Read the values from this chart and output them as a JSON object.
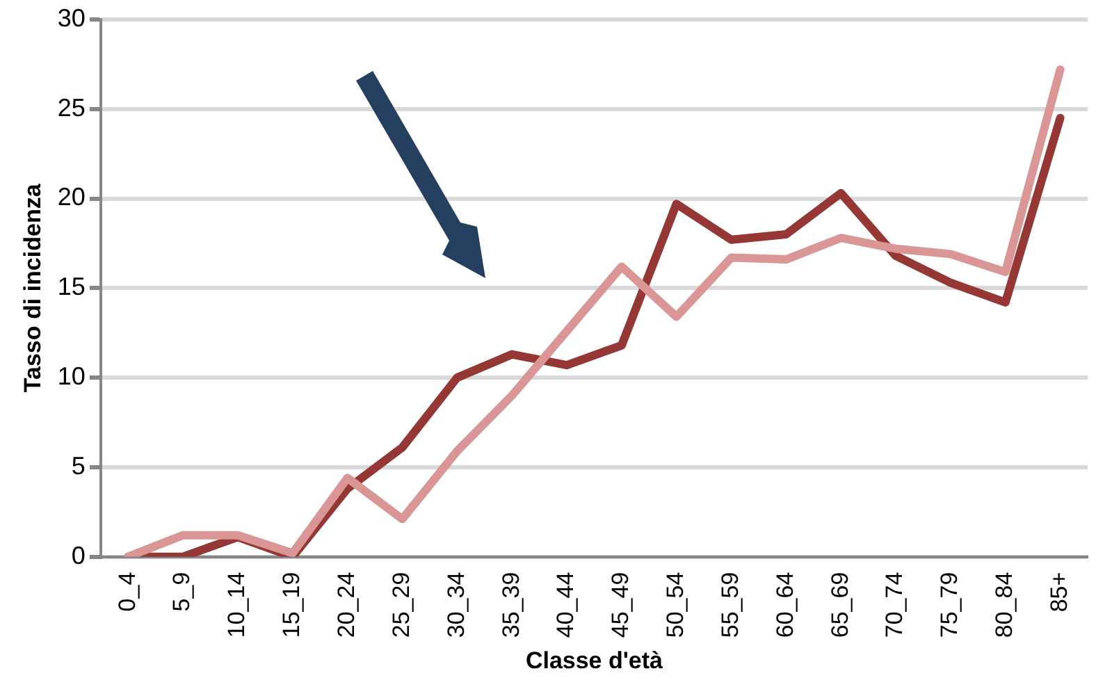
{
  "chart_data": {
    "type": "line",
    "xlabel": "Classe d'età",
    "ylabel": "Tasso di incidenza",
    "categories": [
      "0_4",
      "5_9",
      "10_14",
      "15_19",
      "20_24",
      "25_29",
      "30_34",
      "35_39",
      "40_44",
      "45_49",
      "50_54",
      "55_59",
      "60_64",
      "65_69",
      "70_74",
      "75_79",
      "80_84",
      "85+"
    ],
    "series": [
      {
        "color": "#d99694",
        "values": [
          0,
          1.2,
          1.2,
          0.2,
          4.4,
          2.1,
          5.9,
          9,
          12.6,
          16.2,
          13.4,
          16.7,
          16.6,
          17.8,
          17.2,
          16.9,
          15.9,
          27.2
        ]
      },
      {
        "color": "#953735",
        "values": [
          0,
          0,
          1.1,
          0,
          3.8,
          6.1,
          10,
          11.3,
          10.7,
          11.8,
          19.7,
          17.7,
          18,
          20.3,
          16.8,
          15.3,
          14.2,
          24.5
        ]
      }
    ],
    "ylim": [
      0,
      30
    ],
    "yticks": [
      0,
      5,
      10,
      15,
      20,
      25,
      30
    ],
    "grid": "y",
    "legend": false,
    "marker": "none",
    "line_style": "solid"
  }
}
